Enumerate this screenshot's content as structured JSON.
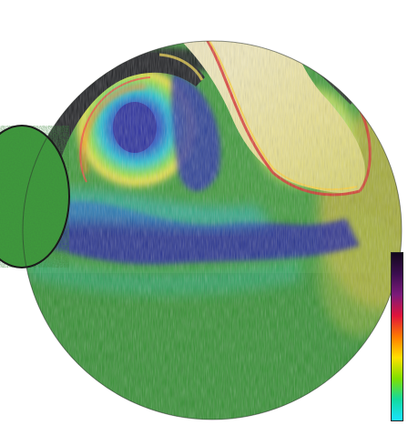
{
  "visualization": {
    "subject": "flow-field-visualization",
    "colormap": {
      "stops": [
        "#12081c",
        "#3b0d4f",
        "#7c1a7a",
        "#e0143a",
        "#ff7a00",
        "#ffe100",
        "#7fe000",
        "#12d9a0",
        "#19e3ff"
      ]
    }
  }
}
